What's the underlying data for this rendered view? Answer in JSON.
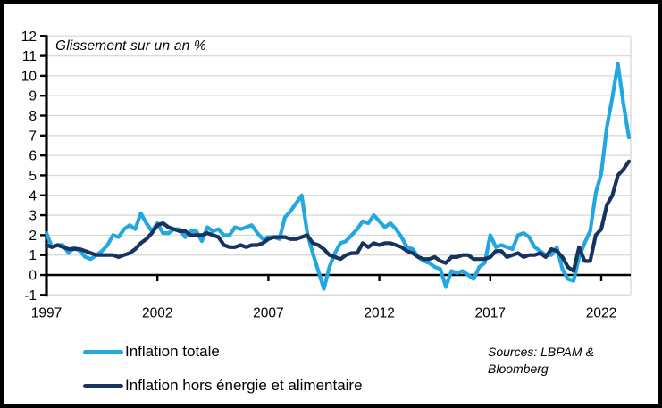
{
  "panel": {
    "background": "#ffffff",
    "border_color": "#000000"
  },
  "chart": {
    "annotation": "Glissement sur un an %",
    "sources_line1": "Sources: LBPAM &",
    "sources_line2": "Bloomberg"
  },
  "legend": {
    "items": [
      {
        "label": "Inflation totale",
        "color": "#22A7E0"
      },
      {
        "label": "Inflation hors énergie et alimentaire",
        "color": "#17335F"
      }
    ]
  },
  "colors": {
    "gridline": "#d9d9d9",
    "axis": "#000000",
    "series_total": "#22A7E0",
    "series_core": "#17335F"
  },
  "chart_data": {
    "type": "line",
    "title": "Glissement sur un an %",
    "xlabel": "",
    "ylabel": "Glissement sur un an %",
    "x_unit": "year (quarterly samples)",
    "ylim": [
      -1,
      12
    ],
    "xlim": [
      1997,
      2023.4
    ],
    "yticks": [
      12,
      11,
      10,
      9,
      8,
      7,
      6,
      5,
      4,
      3,
      2,
      1,
      0,
      -1
    ],
    "xticks": [
      1997,
      2002,
      2007,
      2012,
      2017,
      2022
    ],
    "grid": "horizontal",
    "legend_position": "bottom-left",
    "x": [
      1997,
      1997.25,
      1997.5,
      1997.75,
      1998,
      1998.25,
      1998.5,
      1998.75,
      1999,
      1999.25,
      1999.5,
      1999.75,
      2000,
      2000.25,
      2000.5,
      2000.75,
      2001,
      2001.25,
      2001.5,
      2001.75,
      2002,
      2002.25,
      2002.5,
      2002.75,
      2003,
      2003.25,
      2003.5,
      2003.75,
      2004,
      2004.25,
      2004.5,
      2004.75,
      2005,
      2005.25,
      2005.5,
      2005.75,
      2006,
      2006.25,
      2006.5,
      2006.75,
      2007,
      2007.25,
      2007.5,
      2007.75,
      2008,
      2008.25,
      2008.5,
      2008.75,
      2009,
      2009.25,
      2009.5,
      2009.75,
      2010,
      2010.25,
      2010.5,
      2010.75,
      2011,
      2011.25,
      2011.5,
      2011.75,
      2012,
      2012.25,
      2012.5,
      2012.75,
      2013,
      2013.25,
      2013.5,
      2013.75,
      2014,
      2014.25,
      2014.5,
      2014.75,
      2015,
      2015.25,
      2015.5,
      2015.75,
      2016,
      2016.25,
      2016.5,
      2016.75,
      2017,
      2017.25,
      2017.5,
      2017.75,
      2018,
      2018.25,
      2018.5,
      2018.75,
      2019,
      2019.25,
      2019.5,
      2019.75,
      2020,
      2020.25,
      2020.5,
      2020.75,
      2021,
      2021.25,
      2021.5,
      2021.75,
      2022,
      2022.25,
      2022.5,
      2022.75,
      2023,
      2023.25
    ],
    "series": [
      {
        "name": "Inflation totale",
        "color": "#22A7E0",
        "values": [
          2.1,
          1.4,
          1.5,
          1.5,
          1.1,
          1.4,
          1.2,
          0.9,
          0.8,
          1.0,
          1.2,
          1.5,
          2.0,
          1.9,
          2.3,
          2.5,
          2.3,
          3.1,
          2.6,
          2.2,
          2.6,
          2.1,
          2.1,
          2.3,
          2.3,
          1.9,
          2.2,
          2.2,
          1.7,
          2.4,
          2.2,
          2.3,
          2.0,
          2.0,
          2.4,
          2.3,
          2.4,
          2.5,
          2.1,
          1.8,
          1.9,
          1.9,
          1.8,
          2.9,
          3.2,
          3.6,
          4.0,
          2.1,
          1.1,
          0.2,
          -0.7,
          0.4,
          1.1,
          1.6,
          1.7,
          2.0,
          2.3,
          2.7,
          2.6,
          3.0,
          2.7,
          2.4,
          2.6,
          2.3,
          1.9,
          1.4,
          1.3,
          0.9,
          0.7,
          0.6,
          0.4,
          0.3,
          -0.6,
          0.2,
          0.1,
          0.2,
          0.0,
          -0.2,
          0.4,
          0.6,
          2.0,
          1.4,
          1.5,
          1.4,
          1.3,
          2.0,
          2.1,
          1.9,
          1.4,
          1.2,
          1.0,
          1.0,
          1.4,
          0.3,
          -0.2,
          -0.3,
          0.9,
          1.6,
          2.2,
          4.1,
          5.1,
          7.4,
          8.9,
          10.6,
          8.6,
          6.9
        ]
      },
      {
        "name": "Inflation hors énergie et alimentaire",
        "color": "#17335F",
        "values": [
          1.5,
          1.4,
          1.5,
          1.4,
          1.3,
          1.3,
          1.3,
          1.2,
          1.1,
          1.0,
          1.0,
          1.0,
          1.0,
          0.9,
          1.0,
          1.1,
          1.3,
          1.6,
          1.8,
          2.1,
          2.5,
          2.6,
          2.4,
          2.3,
          2.2,
          2.2,
          2.0,
          2.0,
          2.0,
          2.1,
          2.0,
          1.9,
          1.5,
          1.4,
          1.4,
          1.5,
          1.4,
          1.5,
          1.5,
          1.6,
          1.8,
          1.9,
          1.9,
          1.9,
          1.8,
          1.8,
          1.9,
          2.0,
          1.6,
          1.5,
          1.3,
          1.0,
          0.9,
          0.8,
          1.0,
          1.1,
          1.1,
          1.6,
          1.4,
          1.6,
          1.5,
          1.6,
          1.6,
          1.5,
          1.4,
          1.2,
          1.1,
          0.9,
          0.8,
          0.8,
          0.9,
          0.7,
          0.6,
          0.9,
          0.9,
          1.0,
          1.0,
          0.8,
          0.8,
          0.8,
          0.9,
          1.2,
          1.2,
          0.9,
          1.0,
          1.1,
          0.9,
          1.0,
          1.0,
          1.1,
          0.9,
          1.3,
          1.2,
          0.9,
          0.4,
          0.2,
          1.4,
          0.7,
          0.7,
          2.0,
          2.3,
          3.5,
          4.0,
          5.0,
          5.3,
          5.7
        ]
      }
    ]
  }
}
